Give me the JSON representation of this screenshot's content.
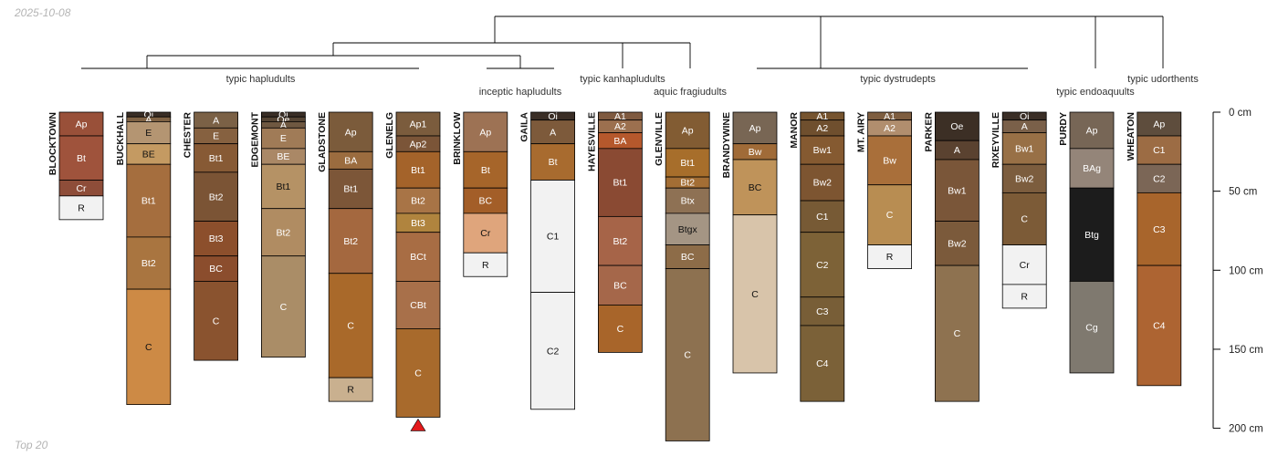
{
  "header": {
    "date": "2025-10-08",
    "footer": "Top 20"
  },
  "colors": {
    "line": "#000000",
    "marker": "#e31a1c"
  },
  "depth_axis": {
    "unit": "cm",
    "max": 200,
    "ticks": [
      0,
      50,
      100,
      150,
      200
    ],
    "labels": [
      "0 cm",
      "50 cm",
      "100 cm",
      "150 cm",
      "200 cm"
    ]
  },
  "dendrogram": {
    "groups": [
      {
        "label": "typic hapludults",
        "members": [
          "BLOCKTOWN",
          "BUCKHALL",
          "CHESTER",
          "EDGEMONT",
          "GLADSTONE",
          "GLENELG"
        ]
      },
      {
        "label": "inceptic hapludults",
        "members": [
          "BRINKLOW",
          "GAILA"
        ]
      },
      {
        "label": "typic kanhapludults",
        "members": [
          "HAYESVILLE"
        ]
      },
      {
        "label": "aquic fragiudults",
        "members": [
          "GLENVILLE"
        ]
      },
      {
        "label": "typic dystrudepts",
        "members": [
          "BRANDYWINE",
          "MANOR",
          "MT. AIRY",
          "PARKER",
          "RIXEYVILLE"
        ]
      },
      {
        "label": "typic endoaquults",
        "members": [
          "PURDY"
        ]
      },
      {
        "label": "typic udorthents",
        "members": [
          "WHEATON"
        ]
      }
    ]
  },
  "profiles": [
    {
      "name": "BLOCKTOWN",
      "horizons": [
        {
          "name": "Ap",
          "top": 0,
          "bottom": 15,
          "color": "#995039"
        },
        {
          "name": "Bt",
          "top": 15,
          "bottom": 43,
          "color": "#9f533c"
        },
        {
          "name": "Cr",
          "top": 43,
          "bottom": 53,
          "color": "#8e4d39"
        },
        {
          "name": "R",
          "top": 53,
          "bottom": 68,
          "color": "#f2f2f2"
        }
      ]
    },
    {
      "name": "BUCKHALL",
      "horizons": [
        {
          "name": "Oi",
          "top": 0,
          "bottom": 3,
          "color": "#3a2e26"
        },
        {
          "name": "A",
          "top": 3,
          "bottom": 6,
          "color": "#7f6244"
        },
        {
          "name": "E",
          "top": 6,
          "bottom": 20,
          "color": "#b49572"
        },
        {
          "name": "BE",
          "top": 20,
          "bottom": 33,
          "color": "#c49a62"
        },
        {
          "name": "Bt1",
          "top": 33,
          "bottom": 79,
          "color": "#a56e3e"
        },
        {
          "name": "Bt2",
          "top": 79,
          "bottom": 112,
          "color": "#a97540"
        },
        {
          "name": "C",
          "top": 112,
          "bottom": 185,
          "color": "#cd8a45"
        }
      ]
    },
    {
      "name": "CHESTER",
      "horizons": [
        {
          "name": "A",
          "top": 0,
          "bottom": 10,
          "color": "#7b6146"
        },
        {
          "name": "E",
          "top": 10,
          "bottom": 20,
          "color": "#866140"
        },
        {
          "name": "Bt1",
          "top": 20,
          "bottom": 38,
          "color": "#875a35"
        },
        {
          "name": "Bt2",
          "top": 38,
          "bottom": 69,
          "color": "#7b5435"
        },
        {
          "name": "Bt3",
          "top": 69,
          "bottom": 91,
          "color": "#8c4f2c"
        },
        {
          "name": "BC",
          "top": 91,
          "bottom": 107,
          "color": "#8b4d2d"
        },
        {
          "name": "C",
          "top": 107,
          "bottom": 157,
          "color": "#8a532f"
        }
      ]
    },
    {
      "name": "EDGEMONT",
      "horizons": [
        {
          "name": "Oi",
          "top": 0,
          "bottom": 3,
          "color": "#3a2e26"
        },
        {
          "name": "Oe",
          "top": 3,
          "bottom": 6,
          "color": "#554434"
        },
        {
          "name": "A",
          "top": 6,
          "bottom": 10,
          "color": "#6f5841"
        },
        {
          "name": "E",
          "top": 10,
          "bottom": 23,
          "color": "#a07b57"
        },
        {
          "name": "BE",
          "top": 23,
          "bottom": 33,
          "color": "#aa8866"
        },
        {
          "name": "Bt1",
          "top": 33,
          "bottom": 61,
          "color": "#b59265"
        },
        {
          "name": "Bt2",
          "top": 61,
          "bottom": 91,
          "color": "#b08c62"
        },
        {
          "name": "C",
          "top": 91,
          "bottom": 155,
          "color": "#aa8d67"
        }
      ]
    },
    {
      "name": "GLADSTONE",
      "horizons": [
        {
          "name": "Ap",
          "top": 0,
          "bottom": 25,
          "color": "#7b5b3b"
        },
        {
          "name": "BA",
          "top": 25,
          "bottom": 36,
          "color": "#9b6c3f"
        },
        {
          "name": "Bt1",
          "top": 36,
          "bottom": 61,
          "color": "#7c5638"
        },
        {
          "name": "Bt2",
          "top": 61,
          "bottom": 102,
          "color": "#a4683f"
        },
        {
          "name": "C",
          "top": 102,
          "bottom": 168,
          "color": "#a9692a"
        },
        {
          "name": "R",
          "top": 168,
          "bottom": 183,
          "color": "#c9b08f"
        }
      ]
    },
    {
      "name": "GLENELG",
      "horizons": [
        {
          "name": "Ap1",
          "top": 0,
          "bottom": 15,
          "color": "#7b5c3d"
        },
        {
          "name": "Ap2",
          "top": 15,
          "bottom": 25,
          "color": "#7b5538"
        },
        {
          "name": "Bt1",
          "top": 25,
          "bottom": 48,
          "color": "#a4632a"
        },
        {
          "name": "Bt2",
          "top": 48,
          "bottom": 64,
          "color": "#a87446"
        },
        {
          "name": "Bt3",
          "top": 64,
          "bottom": 76,
          "color": "#b0843e"
        },
        {
          "name": "BCt",
          "top": 76,
          "bottom": 107,
          "color": "#a86d44"
        },
        {
          "name": "CBt",
          "top": 107,
          "bottom": 137,
          "color": "#a8704a"
        },
        {
          "name": "C",
          "top": 137,
          "bottom": 193,
          "color": "#a86a2c"
        }
      ],
      "marker": true
    },
    {
      "name": "BRINKLOW",
      "horizons": [
        {
          "name": "Ap",
          "top": 0,
          "bottom": 25,
          "color": "#9d7254"
        },
        {
          "name": "Bt",
          "top": 25,
          "bottom": 48,
          "color": "#a6652a"
        },
        {
          "name": "BC",
          "top": 48,
          "bottom": 64,
          "color": "#a35e28"
        },
        {
          "name": "Cr",
          "top": 64,
          "bottom": 89,
          "color": "#dfa57c"
        },
        {
          "name": "R",
          "top": 89,
          "bottom": 104,
          "color": "#f2f2f2"
        }
      ]
    },
    {
      "name": "GAILA",
      "horizons": [
        {
          "name": "Oi",
          "top": 0,
          "bottom": 5,
          "color": "#3a2e26"
        },
        {
          "name": "A",
          "top": 5,
          "bottom": 20,
          "color": "#7d5a3b"
        },
        {
          "name": "Bt",
          "top": 20,
          "bottom": 43,
          "color": "#a86b2f"
        },
        {
          "name": "C1",
          "top": 43,
          "bottom": 114,
          "color": "#f2f2f2"
        },
        {
          "name": "C2",
          "top": 114,
          "bottom": 188,
          "color": "#f2f2f2"
        }
      ]
    },
    {
      "name": "HAYESVILLE",
      "horizons": [
        {
          "name": "A1",
          "top": 0,
          "bottom": 5,
          "color": "#7f5a40"
        },
        {
          "name": "A2",
          "top": 5,
          "bottom": 13,
          "color": "#9c704f"
        },
        {
          "name": "BA",
          "top": 13,
          "bottom": 23,
          "color": "#b5582c"
        },
        {
          "name": "Bt1",
          "top": 23,
          "bottom": 66,
          "color": "#8a4a33"
        },
        {
          "name": "Bt2",
          "top": 66,
          "bottom": 97,
          "color": "#a66448"
        },
        {
          "name": "BC",
          "top": 97,
          "bottom": 122,
          "color": "#a5674a"
        },
        {
          "name": "C",
          "top": 122,
          "bottom": 152,
          "color": "#a8652a"
        }
      ]
    },
    {
      "name": "GLENVILLE",
      "horizons": [
        {
          "name": "Ap",
          "top": 0,
          "bottom": 23,
          "color": "#825c33"
        },
        {
          "name": "Bt1",
          "top": 23,
          "bottom": 41,
          "color": "#a76e2b"
        },
        {
          "name": "Bt2",
          "top": 41,
          "bottom": 48,
          "color": "#a36e35"
        },
        {
          "name": "Btx",
          "top": 48,
          "bottom": 64,
          "color": "#8e7154"
        },
        {
          "name": "Btgx",
          "top": 64,
          "bottom": 84,
          "color": "#a49584"
        },
        {
          "name": "BC",
          "top": 84,
          "bottom": 99,
          "color": "#8d6c48"
        },
        {
          "name": "C",
          "top": 99,
          "bottom": 208,
          "color": "#8d7150"
        }
      ]
    },
    {
      "name": "BRANDYWINE",
      "horizons": [
        {
          "name": "Ap",
          "top": 0,
          "bottom": 20,
          "color": "#786654"
        },
        {
          "name": "Bw",
          "top": 20,
          "bottom": 30,
          "color": "#a06b38"
        },
        {
          "name": "BC",
          "top": 30,
          "bottom": 65,
          "color": "#bf935a"
        },
        {
          "name": "C",
          "top": 65,
          "bottom": 165,
          "color": "#d8c4aa"
        }
      ]
    },
    {
      "name": "MANOR",
      "horizons": [
        {
          "name": "A1",
          "top": 0,
          "bottom": 5,
          "color": "#76542f"
        },
        {
          "name": "A2",
          "top": 5,
          "bottom": 15,
          "color": "#6f4f2e"
        },
        {
          "name": "Bw1",
          "top": 15,
          "bottom": 33,
          "color": "#855a31"
        },
        {
          "name": "Bw2",
          "top": 33,
          "bottom": 56,
          "color": "#7d5531"
        },
        {
          "name": "C1",
          "top": 56,
          "bottom": 76,
          "color": "#775a35"
        },
        {
          "name": "C2",
          "top": 76,
          "bottom": 117,
          "color": "#7d6237"
        },
        {
          "name": "C3",
          "top": 117,
          "bottom": 135,
          "color": "#785e37"
        },
        {
          "name": "C4",
          "top": 135,
          "bottom": 183,
          "color": "#7b6138"
        }
      ]
    },
    {
      "name": "MT. AIRY",
      "horizons": [
        {
          "name": "A1",
          "top": 0,
          "bottom": 5,
          "color": "#7e5e40"
        },
        {
          "name": "A2",
          "top": 5,
          "bottom": 15,
          "color": "#b18e6e"
        },
        {
          "name": "Bw",
          "top": 15,
          "bottom": 46,
          "color": "#a96f3a"
        },
        {
          "name": "C",
          "top": 46,
          "bottom": 84,
          "color": "#b88d52"
        },
        {
          "name": "R",
          "top": 84,
          "bottom": 99,
          "color": "#f2f2f2"
        }
      ]
    },
    {
      "name": "PARKER",
      "horizons": [
        {
          "name": "Oe",
          "top": 0,
          "bottom": 18,
          "color": "#3c2f25"
        },
        {
          "name": "A",
          "top": 18,
          "bottom": 30,
          "color": "#5a4230"
        },
        {
          "name": "Bw1",
          "top": 30,
          "bottom": 69,
          "color": "#7a5639"
        },
        {
          "name": "Bw2",
          "top": 69,
          "bottom": 97,
          "color": "#7b5a3b"
        },
        {
          "name": "C",
          "top": 97,
          "bottom": 183,
          "color": "#8e7250"
        }
      ]
    },
    {
      "name": "RIXEYVILLE",
      "horizons": [
        {
          "name": "Oi",
          "top": 0,
          "bottom": 5,
          "color": "#3a2e26"
        },
        {
          "name": "A",
          "top": 5,
          "bottom": 13,
          "color": "#7a6049"
        },
        {
          "name": "Bw1",
          "top": 13,
          "bottom": 33,
          "color": "#987046"
        },
        {
          "name": "Bw2",
          "top": 33,
          "bottom": 51,
          "color": "#7c5d3e"
        },
        {
          "name": "C",
          "top": 51,
          "bottom": 84,
          "color": "#7c5b37"
        },
        {
          "name": "Cr",
          "top": 84,
          "bottom": 109,
          "color": "#f2f2f2"
        },
        {
          "name": "R",
          "top": 109,
          "bottom": 124,
          "color": "#f2f2f2"
        }
      ]
    },
    {
      "name": "PURDY",
      "horizons": [
        {
          "name": "Ap",
          "top": 0,
          "bottom": 23,
          "color": "#776656"
        },
        {
          "name": "BAg",
          "top": 23,
          "bottom": 48,
          "color": "#948579"
        },
        {
          "name": "Btg",
          "top": 48,
          "bottom": 107,
          "color": "#1c1c1c"
        },
        {
          "name": "Cg",
          "top": 107,
          "bottom": 165,
          "color": "#7f796f"
        }
      ]
    },
    {
      "name": "WHEATON",
      "horizons": [
        {
          "name": "Ap",
          "top": 0,
          "bottom": 15,
          "color": "#5e4d3d"
        },
        {
          "name": "C1",
          "top": 15,
          "bottom": 33,
          "color": "#9c6c44"
        },
        {
          "name": "C2",
          "top": 33,
          "bottom": 51,
          "color": "#7b6656"
        },
        {
          "name": "C3",
          "top": 51,
          "bottom": 97,
          "color": "#a8652c"
        },
        {
          "name": "C4",
          "top": 97,
          "bottom": 173,
          "color": "#ad6432"
        }
      ]
    }
  ]
}
